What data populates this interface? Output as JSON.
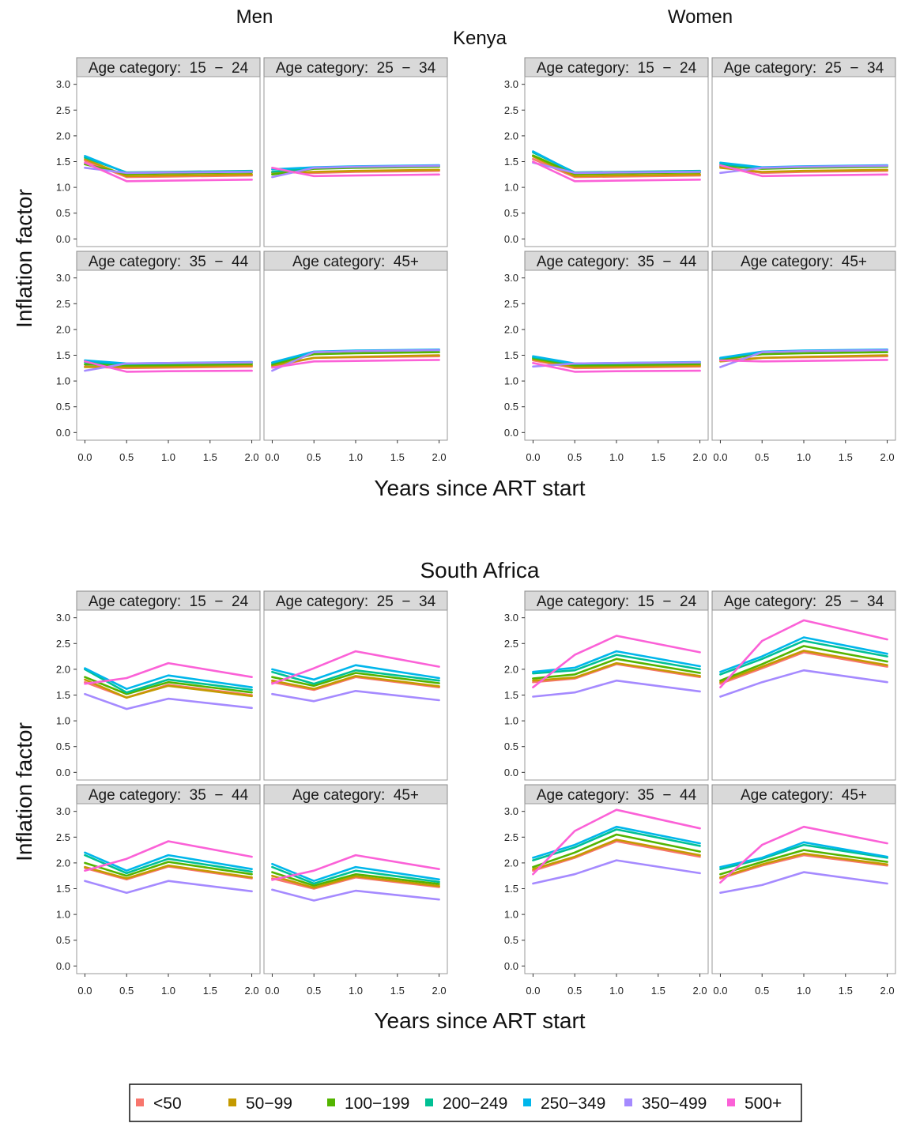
{
  "chart_data": {
    "type": "line",
    "column_headers": [
      "Men",
      "Women"
    ],
    "xlabel": "Years since ART start",
    "ylabel": "Inflation factor",
    "x": [
      0,
      0.5,
      1,
      2
    ],
    "x_ticks": [
      "0.0",
      "0.5",
      "1.0",
      "1.5",
      "2.0"
    ],
    "y_ticks": [
      "0.0",
      "0.5",
      "1.0",
      "1.5",
      "2.0",
      "2.5",
      "3.0"
    ],
    "xlim": [
      0,
      2
    ],
    "ylim": [
      0,
      3
    ],
    "grid": false,
    "legend_position": "bottom",
    "series": [
      {
        "name": "<50",
        "color": "#F8766D"
      },
      {
        "name": "50−99",
        "color": "#C49A00"
      },
      {
        "name": "100−199",
        "color": "#53B400"
      },
      {
        "name": "200−249",
        "color": "#00C094"
      },
      {
        "name": "250−349",
        "color": "#00B6EB"
      },
      {
        "name": "350−499",
        "color": "#A58AFF"
      },
      {
        "name": "500+",
        "color": "#FB61D7"
      }
    ],
    "countries": [
      {
        "name": "Kenya",
        "groups": [
          {
            "sex": "Men",
            "panels": [
              {
                "title": "Age category:  15  −  24",
                "values": [
                  [
                    1.52,
                    1.2,
                    1.21,
                    1.23
                  ],
                  [
                    1.55,
                    1.22,
                    1.23,
                    1.25
                  ],
                  [
                    1.45,
                    1.26,
                    1.27,
                    1.29
                  ],
                  [
                    1.58,
                    1.29,
                    1.3,
                    1.32
                  ],
                  [
                    1.61,
                    1.28,
                    1.29,
                    1.31
                  ],
                  [
                    1.38,
                    1.28,
                    1.29,
                    1.3
                  ],
                  [
                    1.48,
                    1.12,
                    1.13,
                    1.15
                  ]
                ]
              },
              {
                "title": "Age category:  25  −  34",
                "values": [
                  [
                    1.3,
                    1.28,
                    1.3,
                    1.32
                  ],
                  [
                    1.28,
                    1.3,
                    1.32,
                    1.34
                  ],
                  [
                    1.25,
                    1.36,
                    1.38,
                    1.4
                  ],
                  [
                    1.3,
                    1.38,
                    1.4,
                    1.42
                  ],
                  [
                    1.35,
                    1.39,
                    1.41,
                    1.43
                  ],
                  [
                    1.2,
                    1.38,
                    1.4,
                    1.42
                  ],
                  [
                    1.38,
                    1.22,
                    1.23,
                    1.25
                  ]
                ]
              },
              {
                "title": "Age category:  35  −  44",
                "values": [
                  [
                    1.28,
                    1.25,
                    1.26,
                    1.28
                  ],
                  [
                    1.27,
                    1.27,
                    1.28,
                    1.3
                  ],
                  [
                    1.32,
                    1.3,
                    1.31,
                    1.33
                  ],
                  [
                    1.36,
                    1.33,
                    1.34,
                    1.36
                  ],
                  [
                    1.4,
                    1.34,
                    1.35,
                    1.37
                  ],
                  [
                    1.2,
                    1.34,
                    1.35,
                    1.36
                  ],
                  [
                    1.38,
                    1.18,
                    1.19,
                    1.2
                  ]
                ]
              },
              {
                "title": "Age category:  45+",
                "values": [
                  [
                    1.28,
                    1.45,
                    1.46,
                    1.48
                  ],
                  [
                    1.3,
                    1.45,
                    1.47,
                    1.5
                  ],
                  [
                    1.32,
                    1.52,
                    1.54,
                    1.56
                  ],
                  [
                    1.35,
                    1.56,
                    1.58,
                    1.6
                  ],
                  [
                    1.36,
                    1.57,
                    1.59,
                    1.61
                  ],
                  [
                    1.2,
                    1.56,
                    1.58,
                    1.6
                  ],
                  [
                    1.26,
                    1.38,
                    1.39,
                    1.41
                  ]
                ]
              }
            ]
          },
          {
            "sex": "Women",
            "panels": [
              {
                "title": "Age category:  15  −  24",
                "values": [
                  [
                    1.55,
                    1.2,
                    1.21,
                    1.23
                  ],
                  [
                    1.6,
                    1.22,
                    1.23,
                    1.25
                  ],
                  [
                    1.62,
                    1.26,
                    1.27,
                    1.29
                  ],
                  [
                    1.68,
                    1.29,
                    1.3,
                    1.32
                  ],
                  [
                    1.7,
                    1.28,
                    1.29,
                    1.31
                  ],
                  [
                    1.48,
                    1.28,
                    1.29,
                    1.3
                  ],
                  [
                    1.5,
                    1.12,
                    1.13,
                    1.15
                  ]
                ]
              },
              {
                "title": "Age category:  25  −  34",
                "values": [
                  [
                    1.4,
                    1.28,
                    1.3,
                    1.32
                  ],
                  [
                    1.38,
                    1.3,
                    1.32,
                    1.34
                  ],
                  [
                    1.42,
                    1.36,
                    1.38,
                    1.4
                  ],
                  [
                    1.45,
                    1.38,
                    1.4,
                    1.42
                  ],
                  [
                    1.48,
                    1.39,
                    1.41,
                    1.43
                  ],
                  [
                    1.28,
                    1.38,
                    1.4,
                    1.42
                  ],
                  [
                    1.43,
                    1.22,
                    1.23,
                    1.25
                  ]
                ]
              },
              {
                "title": "Age category:  35  −  44",
                "values": [
                  [
                    1.4,
                    1.25,
                    1.26,
                    1.28
                  ],
                  [
                    1.42,
                    1.27,
                    1.28,
                    1.3
                  ],
                  [
                    1.44,
                    1.3,
                    1.31,
                    1.33
                  ],
                  [
                    1.46,
                    1.33,
                    1.34,
                    1.36
                  ],
                  [
                    1.48,
                    1.34,
                    1.35,
                    1.37
                  ],
                  [
                    1.28,
                    1.34,
                    1.35,
                    1.36
                  ],
                  [
                    1.35,
                    1.18,
                    1.19,
                    1.2
                  ]
                ]
              },
              {
                "title": "Age category:  45+",
                "values": [
                  [
                    1.4,
                    1.45,
                    1.46,
                    1.48
                  ],
                  [
                    1.38,
                    1.45,
                    1.47,
                    1.5
                  ],
                  [
                    1.42,
                    1.52,
                    1.54,
                    1.56
                  ],
                  [
                    1.44,
                    1.56,
                    1.58,
                    1.6
                  ],
                  [
                    1.45,
                    1.57,
                    1.59,
                    1.61
                  ],
                  [
                    1.27,
                    1.56,
                    1.58,
                    1.6
                  ],
                  [
                    1.4,
                    1.38,
                    1.39,
                    1.41
                  ]
                ]
              }
            ]
          }
        ]
      },
      {
        "name": "South Africa",
        "groups": [
          {
            "sex": "Men",
            "panels": [
              {
                "title": "Age category:  15  −  24",
                "values": [
                  [
                    1.75,
                    1.45,
                    1.7,
                    1.5
                  ],
                  [
                    1.8,
                    1.45,
                    1.68,
                    1.48
                  ],
                  [
                    1.85,
                    1.52,
                    1.75,
                    1.55
                  ],
                  [
                    2.0,
                    1.55,
                    1.8,
                    1.6
                  ],
                  [
                    2.02,
                    1.62,
                    1.88,
                    1.65
                  ],
                  [
                    1.52,
                    1.23,
                    1.43,
                    1.25
                  ],
                  [
                    1.72,
                    1.83,
                    2.12,
                    1.85
                  ]
                ]
              },
              {
                "title": "Age category:  25  −  34",
                "values": [
                  [
                    1.75,
                    1.6,
                    1.85,
                    1.65
                  ],
                  [
                    1.78,
                    1.62,
                    1.87,
                    1.67
                  ],
                  [
                    1.85,
                    1.68,
                    1.93,
                    1.73
                  ],
                  [
                    1.95,
                    1.72,
                    1.98,
                    1.78
                  ],
                  [
                    2.0,
                    1.8,
                    2.08,
                    1.83
                  ],
                  [
                    1.52,
                    1.38,
                    1.58,
                    1.4
                  ],
                  [
                    1.72,
                    2.02,
                    2.35,
                    2.05
                  ]
                ]
              },
              {
                "title": "Age category:  35  −  44",
                "values": [
                  [
                    1.9,
                    1.68,
                    1.93,
                    1.7
                  ],
                  [
                    1.92,
                    1.7,
                    1.95,
                    1.72
                  ],
                  [
                    2.0,
                    1.75,
                    2.02,
                    1.78
                  ],
                  [
                    2.15,
                    1.8,
                    2.08,
                    1.83
                  ],
                  [
                    2.2,
                    1.85,
                    2.15,
                    1.88
                  ],
                  [
                    1.65,
                    1.42,
                    1.65,
                    1.45
                  ],
                  [
                    1.85,
                    2.08,
                    2.42,
                    2.12
                  ]
                ]
              },
              {
                "title": "Age category:  45+",
                "values": [
                  [
                    1.7,
                    1.5,
                    1.72,
                    1.53
                  ],
                  [
                    1.75,
                    1.52,
                    1.74,
                    1.55
                  ],
                  [
                    1.82,
                    1.56,
                    1.78,
                    1.59
                  ],
                  [
                    1.92,
                    1.6,
                    1.85,
                    1.63
                  ],
                  [
                    1.98,
                    1.65,
                    1.92,
                    1.68
                  ],
                  [
                    1.48,
                    1.27,
                    1.46,
                    1.29
                  ],
                  [
                    1.67,
                    1.85,
                    2.15,
                    1.88
                  ]
                ]
              }
            ]
          },
          {
            "sex": "Women",
            "panels": [
              {
                "title": "Age category:  15  −  24",
                "values": [
                  [
                    1.75,
                    1.82,
                    2.1,
                    1.85
                  ],
                  [
                    1.78,
                    1.84,
                    2.12,
                    1.87
                  ],
                  [
                    1.82,
                    1.9,
                    2.2,
                    1.93
                  ],
                  [
                    1.92,
                    1.98,
                    2.28,
                    2.0
                  ],
                  [
                    1.95,
                    2.03,
                    2.35,
                    2.06
                  ],
                  [
                    1.47,
                    1.55,
                    1.78,
                    1.57
                  ],
                  [
                    1.65,
                    2.28,
                    2.65,
                    2.33
                  ]
                ]
              },
              {
                "title": "Age category:  25  −  34",
                "values": [
                  [
                    1.72,
                    2.02,
                    2.33,
                    2.05
                  ],
                  [
                    1.75,
                    2.05,
                    2.36,
                    2.08
                  ],
                  [
                    1.78,
                    2.1,
                    2.45,
                    2.15
                  ],
                  [
                    1.9,
                    2.2,
                    2.55,
                    2.25
                  ],
                  [
                    1.95,
                    2.25,
                    2.62,
                    2.3
                  ],
                  [
                    1.47,
                    1.75,
                    1.98,
                    1.75
                  ],
                  [
                    1.65,
                    2.55,
                    2.95,
                    2.58
                  ]
                ]
              },
              {
                "title": "Age category:  35  −  44",
                "values": [
                  [
                    1.85,
                    2.1,
                    2.42,
                    2.12
                  ],
                  [
                    1.88,
                    2.12,
                    2.45,
                    2.15
                  ],
                  [
                    1.92,
                    2.2,
                    2.55,
                    2.22
                  ],
                  [
                    2.05,
                    2.3,
                    2.65,
                    2.33
                  ],
                  [
                    2.1,
                    2.35,
                    2.7,
                    2.38
                  ],
                  [
                    1.6,
                    1.78,
                    2.05,
                    1.8
                  ],
                  [
                    1.78,
                    2.62,
                    3.03,
                    2.67
                  ]
                ]
              },
              {
                "title": "Age category:  45+",
                "values": [
                  [
                    1.7,
                    1.95,
                    2.15,
                    1.95
                  ],
                  [
                    1.72,
                    1.97,
                    2.18,
                    1.97
                  ],
                  [
                    1.78,
                    2.02,
                    2.25,
                    2.02
                  ],
                  [
                    1.88,
                    2.08,
                    2.35,
                    2.1
                  ],
                  [
                    1.92,
                    2.1,
                    2.4,
                    2.12
                  ],
                  [
                    1.42,
                    1.57,
                    1.82,
                    1.6
                  ],
                  [
                    1.62,
                    2.35,
                    2.7,
                    2.38
                  ]
                ]
              }
            ]
          }
        ]
      }
    ]
  }
}
